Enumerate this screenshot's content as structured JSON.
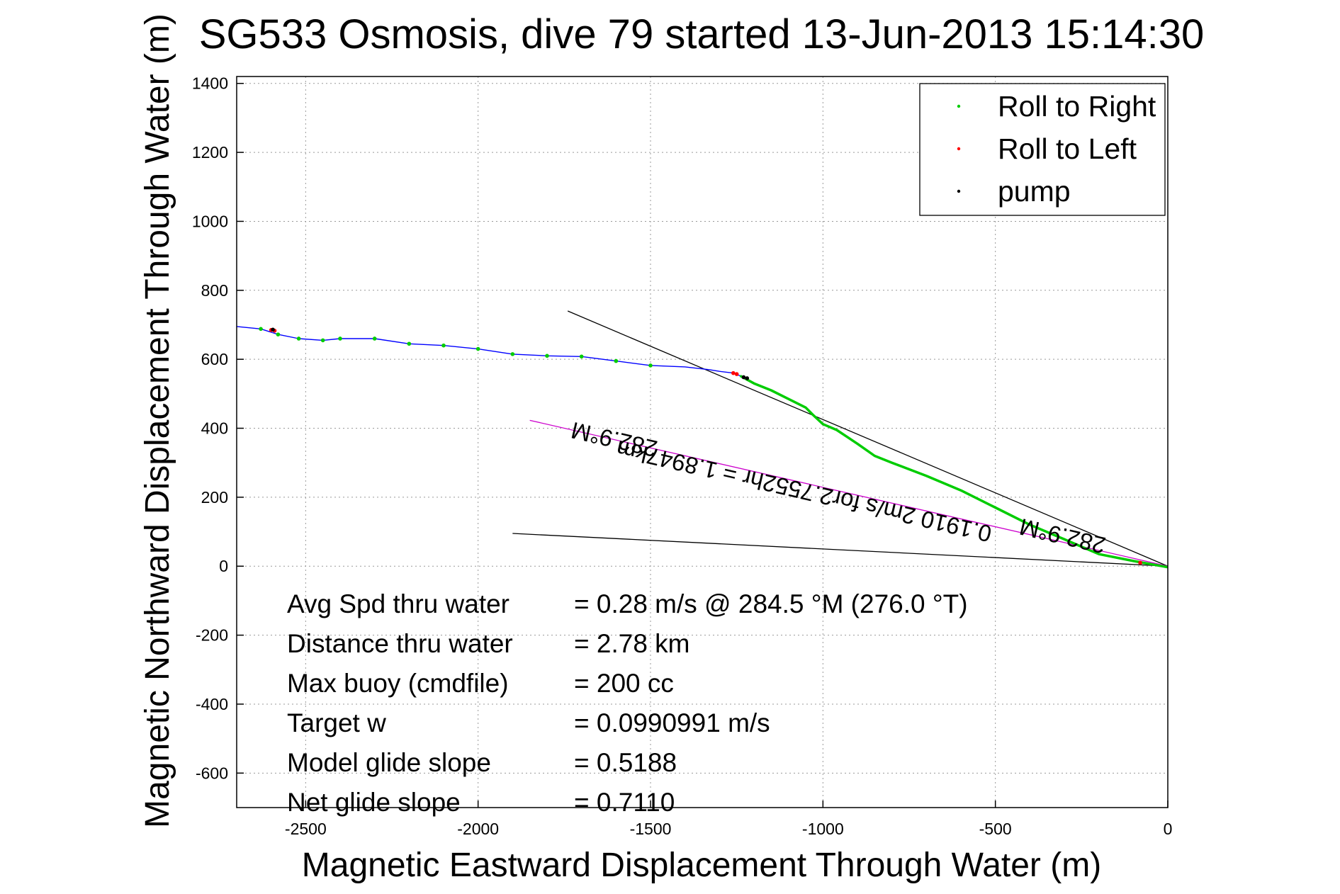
{
  "chart_data": {
    "type": "line",
    "title": "SG533 Osmosis, dive 79 started 13-Jun-2013 15:14:30",
    "xlabel": "Magnetic Eastward Displacement Through Water (m)",
    "ylabel": "Magnetic Northward Displacement Through Water (m)",
    "xlim": [
      -2700,
      0
    ],
    "ylim": [
      -700,
      1420
    ],
    "xticks": [
      -2500,
      -2000,
      -1500,
      -1000,
      -500,
      0
    ],
    "yticks": [
      1400,
      1200,
      1000,
      800,
      600,
      400,
      200,
      0,
      -200,
      -400,
      -600
    ],
    "xtick_labels": [
      "-2500",
      "-2000",
      "-1500",
      "-1000",
      "-500",
      "0"
    ],
    "ytick_labels": [
      "1400",
      "1200",
      "1000",
      "800",
      "600",
      "400",
      "200",
      "0",
      "-200",
      "-400",
      "-600"
    ],
    "grid": true,
    "legend_position": "top-right",
    "legend": [
      {
        "label": "Roll to Right",
        "color": "#00cc00"
      },
      {
        "label": "Roll to Left",
        "color": "#ff0000"
      },
      {
        "label": "pump",
        "color": "#000000"
      }
    ],
    "track": {
      "name": "track",
      "color": "#0000ff",
      "x": [
        -2700,
        -2630,
        -2580,
        -2520,
        -2450,
        -2400,
        -2300,
        -2200,
        -2100,
        -2000,
        -1900,
        -1800,
        -1700,
        -1600,
        -1500,
        -1400,
        -1330,
        -1300,
        -1260,
        -1240
      ],
      "y": [
        695,
        688,
        672,
        660,
        655,
        660,
        660,
        645,
        640,
        630,
        615,
        610,
        608,
        595,
        582,
        578,
        570,
        565,
        560,
        552
      ]
    },
    "roll_right_track": {
      "color": "#00cc00",
      "x": [
        -1240,
        -1200,
        -1150,
        -1100,
        -1050,
        -1030,
        -1000,
        -960,
        -930,
        -900,
        -850,
        -800,
        -700,
        -600,
        -500,
        -400,
        -300,
        -200,
        -100,
        0
      ],
      "y": [
        552,
        530,
        510,
        485,
        460,
        440,
        412,
        395,
        375,
        355,
        320,
        300,
        262,
        220,
        170,
        120,
        78,
        35,
        15,
        -3
      ]
    },
    "roll_right_points": {
      "x": [
        -2630,
        -2580,
        -2520,
        -2450,
        -2400,
        -2300,
        -2200,
        -2100,
        -2000,
        -1900,
        -1800,
        -1700,
        -1600,
        -1500
      ],
      "y": [
        688,
        672,
        660,
        655,
        660,
        660,
        645,
        640,
        630,
        615,
        610,
        608,
        595,
        582
      ]
    },
    "roll_left_points": {
      "x": [
        -2600,
        -2590,
        -1260,
        -1250,
        -80
      ],
      "y": [
        685,
        683,
        560,
        557,
        10
      ]
    },
    "pump_points": {
      "x": [
        -2595,
        -1230,
        -1220
      ],
      "y": [
        686,
        548,
        545
      ]
    },
    "reference_lines": [
      {
        "name": "upper-heading-line",
        "color": "#000000",
        "x": [
          -1740,
          0
        ],
        "y": [
          740,
          0
        ]
      },
      {
        "name": "model-heading-line",
        "color": "#cc00cc",
        "x": [
          -1850,
          0
        ],
        "y": [
          423,
          0
        ]
      },
      {
        "name": "lower-heading-line",
        "color": "#000000",
        "x": [
          -1900,
          0
        ],
        "y": [
          95,
          0
        ]
      }
    ],
    "annotations": [
      {
        "name": "heading-annotation-1",
        "text": "282.9°M",
        "x": -1600,
        "y": 390,
        "angle": 193
      },
      {
        "name": "heading-annotation-2",
        "text": "0.1910 2m/s for2.7552hr = 1.8947km",
        "x": -1050,
        "y": 240,
        "angle": 193
      },
      {
        "name": "heading-annotation-3",
        "text": "282.9°M",
        "x": -300,
        "y": 110,
        "angle": 193
      }
    ],
    "stats": [
      {
        "label": "Avg Spd thru water",
        "value": "=  0.28 m/s @ 284.5 °M (276.0 °T)"
      },
      {
        "label": "Distance thru water",
        "value": "=  2.78 km"
      },
      {
        "label": "Max buoy (cmdfile)",
        "value": "= 200 cc"
      },
      {
        "label": "Target w",
        "value": "= 0.0990991 m/s"
      },
      {
        "label": "Model glide slope",
        "value": "= 0.5188"
      },
      {
        "label": "Net glide slope",
        "value": "= 0.7110"
      }
    ]
  }
}
